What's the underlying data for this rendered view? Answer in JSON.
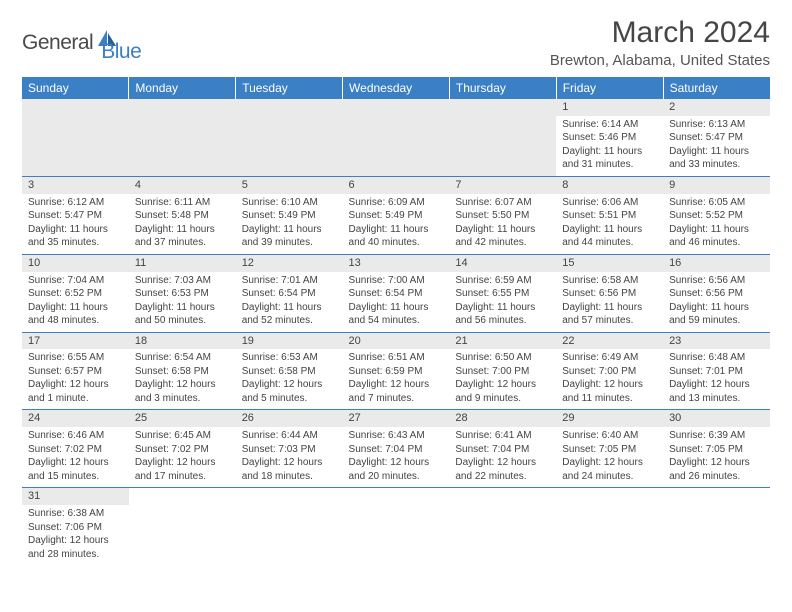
{
  "header": {
    "logo_general": "General",
    "logo_blue": "Blue",
    "month_title": "March 2024",
    "location": "Brewton, Alabama, United States"
  },
  "colors": {
    "header_bg": "#3b7fc4",
    "header_text": "#ffffff",
    "daynum_bg": "#eaeaea",
    "border": "#3b7fc4",
    "body_text": "#444444"
  },
  "day_headers": [
    "Sunday",
    "Monday",
    "Tuesday",
    "Wednesday",
    "Thursday",
    "Friday",
    "Saturday"
  ],
  "weeks": [
    [
      null,
      null,
      null,
      null,
      null,
      {
        "n": "1",
        "sr": "Sunrise: 6:14 AM",
        "ss": "Sunset: 5:46 PM",
        "d1": "Daylight: 11 hours",
        "d2": "and 31 minutes."
      },
      {
        "n": "2",
        "sr": "Sunrise: 6:13 AM",
        "ss": "Sunset: 5:47 PM",
        "d1": "Daylight: 11 hours",
        "d2": "and 33 minutes."
      }
    ],
    [
      {
        "n": "3",
        "sr": "Sunrise: 6:12 AM",
        "ss": "Sunset: 5:47 PM",
        "d1": "Daylight: 11 hours",
        "d2": "and 35 minutes."
      },
      {
        "n": "4",
        "sr": "Sunrise: 6:11 AM",
        "ss": "Sunset: 5:48 PM",
        "d1": "Daylight: 11 hours",
        "d2": "and 37 minutes."
      },
      {
        "n": "5",
        "sr": "Sunrise: 6:10 AM",
        "ss": "Sunset: 5:49 PM",
        "d1": "Daylight: 11 hours",
        "d2": "and 39 minutes."
      },
      {
        "n": "6",
        "sr": "Sunrise: 6:09 AM",
        "ss": "Sunset: 5:49 PM",
        "d1": "Daylight: 11 hours",
        "d2": "and 40 minutes."
      },
      {
        "n": "7",
        "sr": "Sunrise: 6:07 AM",
        "ss": "Sunset: 5:50 PM",
        "d1": "Daylight: 11 hours",
        "d2": "and 42 minutes."
      },
      {
        "n": "8",
        "sr": "Sunrise: 6:06 AM",
        "ss": "Sunset: 5:51 PM",
        "d1": "Daylight: 11 hours",
        "d2": "and 44 minutes."
      },
      {
        "n": "9",
        "sr": "Sunrise: 6:05 AM",
        "ss": "Sunset: 5:52 PM",
        "d1": "Daylight: 11 hours",
        "d2": "and 46 minutes."
      }
    ],
    [
      {
        "n": "10",
        "sr": "Sunrise: 7:04 AM",
        "ss": "Sunset: 6:52 PM",
        "d1": "Daylight: 11 hours",
        "d2": "and 48 minutes."
      },
      {
        "n": "11",
        "sr": "Sunrise: 7:03 AM",
        "ss": "Sunset: 6:53 PM",
        "d1": "Daylight: 11 hours",
        "d2": "and 50 minutes."
      },
      {
        "n": "12",
        "sr": "Sunrise: 7:01 AM",
        "ss": "Sunset: 6:54 PM",
        "d1": "Daylight: 11 hours",
        "d2": "and 52 minutes."
      },
      {
        "n": "13",
        "sr": "Sunrise: 7:00 AM",
        "ss": "Sunset: 6:54 PM",
        "d1": "Daylight: 11 hours",
        "d2": "and 54 minutes."
      },
      {
        "n": "14",
        "sr": "Sunrise: 6:59 AM",
        "ss": "Sunset: 6:55 PM",
        "d1": "Daylight: 11 hours",
        "d2": "and 56 minutes."
      },
      {
        "n": "15",
        "sr": "Sunrise: 6:58 AM",
        "ss": "Sunset: 6:56 PM",
        "d1": "Daylight: 11 hours",
        "d2": "and 57 minutes."
      },
      {
        "n": "16",
        "sr": "Sunrise: 6:56 AM",
        "ss": "Sunset: 6:56 PM",
        "d1": "Daylight: 11 hours",
        "d2": "and 59 minutes."
      }
    ],
    [
      {
        "n": "17",
        "sr": "Sunrise: 6:55 AM",
        "ss": "Sunset: 6:57 PM",
        "d1": "Daylight: 12 hours",
        "d2": "and 1 minute."
      },
      {
        "n": "18",
        "sr": "Sunrise: 6:54 AM",
        "ss": "Sunset: 6:58 PM",
        "d1": "Daylight: 12 hours",
        "d2": "and 3 minutes."
      },
      {
        "n": "19",
        "sr": "Sunrise: 6:53 AM",
        "ss": "Sunset: 6:58 PM",
        "d1": "Daylight: 12 hours",
        "d2": "and 5 minutes."
      },
      {
        "n": "20",
        "sr": "Sunrise: 6:51 AM",
        "ss": "Sunset: 6:59 PM",
        "d1": "Daylight: 12 hours",
        "d2": "and 7 minutes."
      },
      {
        "n": "21",
        "sr": "Sunrise: 6:50 AM",
        "ss": "Sunset: 7:00 PM",
        "d1": "Daylight: 12 hours",
        "d2": "and 9 minutes."
      },
      {
        "n": "22",
        "sr": "Sunrise: 6:49 AM",
        "ss": "Sunset: 7:00 PM",
        "d1": "Daylight: 12 hours",
        "d2": "and 11 minutes."
      },
      {
        "n": "23",
        "sr": "Sunrise: 6:48 AM",
        "ss": "Sunset: 7:01 PM",
        "d1": "Daylight: 12 hours",
        "d2": "and 13 minutes."
      }
    ],
    [
      {
        "n": "24",
        "sr": "Sunrise: 6:46 AM",
        "ss": "Sunset: 7:02 PM",
        "d1": "Daylight: 12 hours",
        "d2": "and 15 minutes."
      },
      {
        "n": "25",
        "sr": "Sunrise: 6:45 AM",
        "ss": "Sunset: 7:02 PM",
        "d1": "Daylight: 12 hours",
        "d2": "and 17 minutes."
      },
      {
        "n": "26",
        "sr": "Sunrise: 6:44 AM",
        "ss": "Sunset: 7:03 PM",
        "d1": "Daylight: 12 hours",
        "d2": "and 18 minutes."
      },
      {
        "n": "27",
        "sr": "Sunrise: 6:43 AM",
        "ss": "Sunset: 7:04 PM",
        "d1": "Daylight: 12 hours",
        "d2": "and 20 minutes."
      },
      {
        "n": "28",
        "sr": "Sunrise: 6:41 AM",
        "ss": "Sunset: 7:04 PM",
        "d1": "Daylight: 12 hours",
        "d2": "and 22 minutes."
      },
      {
        "n": "29",
        "sr": "Sunrise: 6:40 AM",
        "ss": "Sunset: 7:05 PM",
        "d1": "Daylight: 12 hours",
        "d2": "and 24 minutes."
      },
      {
        "n": "30",
        "sr": "Sunrise: 6:39 AM",
        "ss": "Sunset: 7:05 PM",
        "d1": "Daylight: 12 hours",
        "d2": "and 26 minutes."
      }
    ],
    [
      {
        "n": "31",
        "sr": "Sunrise: 6:38 AM",
        "ss": "Sunset: 7:06 PM",
        "d1": "Daylight: 12 hours",
        "d2": "and 28 minutes."
      },
      null,
      null,
      null,
      null,
      null,
      null
    ]
  ]
}
